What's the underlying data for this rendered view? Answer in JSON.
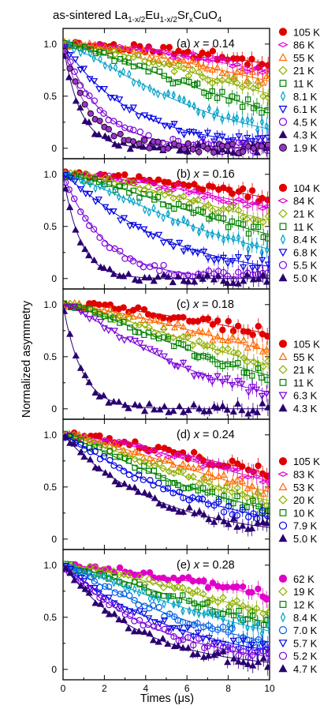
{
  "title": {
    "prefix": "as-sintered La",
    "sub1": "1-x/2",
    "mid1": "Eu",
    "sub2": "1-x/2",
    "mid2": "Sr",
    "sub3": "x",
    "suffix": "CuO",
    "sub4": "4"
  },
  "xlabel": "Times (μs)",
  "ylabel": "Normalized asymmetry",
  "chart_data": [
    {
      "type": "scatter",
      "panel": "(a)",
      "x_value": "0.14",
      "xlim": [
        0,
        10
      ],
      "ylim": [
        -0.1,
        1.15
      ],
      "xticks": [
        0,
        2,
        4,
        6,
        8,
        10
      ],
      "yticks": [
        0,
        0.5,
        1.0
      ],
      "series": [
        {
          "name": "105 K",
          "color": "#e00000",
          "marker": "circle-filled",
          "decay": [
            0.04,
            1.7
          ]
        },
        {
          "name": "86 K",
          "color": "#e000d0",
          "marker": "diamond-side",
          "decay": [
            0.05,
            1.7
          ]
        },
        {
          "name": "55 K",
          "color": "#ff6a00",
          "marker": "triangle-up",
          "decay": [
            0.06,
            1.6
          ]
        },
        {
          "name": "21 K",
          "color": "#8fae00",
          "marker": "diamond",
          "decay": [
            0.075,
            1.5
          ]
        },
        {
          "name": "11 K",
          "color": "#008000",
          "marker": "square",
          "decay": [
            0.1,
            1.4
          ]
        },
        {
          "name": "8.1 K",
          "color": "#00a0c8",
          "marker": "diamond-thin",
          "decay": [
            0.15,
            1.3
          ]
        },
        {
          "name": "6.1 K",
          "color": "#0000e6",
          "marker": "triangle-down",
          "decay": [
            0.3,
            1.0
          ]
        },
        {
          "name": "4.5 K",
          "color": "#7a00d9",
          "marker": "circle-open",
          "decay": [
            0.55,
            1.0
          ]
        },
        {
          "name": "4.3 K",
          "color": "#2a0070",
          "marker": "triangle-up-filled",
          "decay": [
            1.2,
            1.0
          ]
        },
        {
          "name": "1.9 K",
          "color": "#9933cc",
          "marker": "circle-filled-edged",
          "decay": [
            0.8,
            1.0
          ]
        }
      ]
    },
    {
      "type": "scatter",
      "panel": "(b)",
      "x_value": "0.16",
      "xlim": [
        0,
        10
      ],
      "ylim": [
        -0.1,
        1.15
      ],
      "xticks": [
        0,
        2,
        4,
        6,
        8,
        10
      ],
      "yticks": [
        0,
        0.5,
        1.0
      ],
      "series": [
        {
          "name": "104 K",
          "color": "#e00000",
          "marker": "circle-filled",
          "decay": [
            0.045,
            1.7
          ]
        },
        {
          "name": "84 K",
          "color": "#e000d0",
          "marker": "diamond-side",
          "decay": [
            0.055,
            1.6
          ]
        },
        {
          "name": "21 K",
          "color": "#8fae00",
          "marker": "diamond",
          "decay": [
            0.07,
            1.5
          ]
        },
        {
          "name": "11 K",
          "color": "#008000",
          "marker": "square",
          "decay": [
            0.09,
            1.4
          ]
        },
        {
          "name": "8.4 K",
          "color": "#00a0c8",
          "marker": "diamond-thin",
          "decay": [
            0.12,
            1.3
          ]
        },
        {
          "name": "6.8 K",
          "color": "#0000e6",
          "marker": "triangle-down",
          "decay": [
            0.2,
            1.1
          ]
        },
        {
          "name": "5.5 K",
          "color": "#7a00d9",
          "marker": "circle-open",
          "decay": [
            0.5,
            1.0
          ]
        },
        {
          "name": "5.0 K",
          "color": "#2a0070",
          "marker": "triangle-up-filled",
          "decay": [
            1.2,
            1.0
          ]
        }
      ]
    },
    {
      "type": "scatter",
      "panel": "(c)",
      "x_value": "0.18",
      "xlim": [
        0,
        10
      ],
      "ylim": [
        -0.1,
        1.15
      ],
      "xticks": [
        0,
        2,
        4,
        6,
        8,
        10
      ],
      "yticks": [
        0,
        0.5,
        1.0
      ],
      "series": [
        {
          "name": "105 K",
          "color": "#e00000",
          "marker": "circle-filled",
          "decay": [
            0.05,
            1.6
          ]
        },
        {
          "name": "55 K",
          "color": "#ff6a00",
          "marker": "triangle-up",
          "decay": [
            0.07,
            1.5
          ]
        },
        {
          "name": "21 K",
          "color": "#8fae00",
          "marker": "diamond",
          "decay": [
            0.09,
            1.4
          ]
        },
        {
          "name": "11 K",
          "color": "#008000",
          "marker": "square",
          "decay": [
            0.11,
            1.4
          ]
        },
        {
          "name": "6.3 K",
          "color": "#7a00d9",
          "marker": "triangle-down",
          "decay": [
            0.16,
            1.3
          ]
        },
        {
          "name": "4.3 K",
          "color": "#2a0070",
          "marker": "triangle-up-filled",
          "decay": [
            1.1,
            1.0
          ]
        }
      ]
    },
    {
      "type": "scatter",
      "panel": "(d)",
      "x_value": "0.24",
      "xlim": [
        0,
        10
      ],
      "ylim": [
        -0.1,
        1.15
      ],
      "xticks": [
        0,
        2,
        4,
        6,
        8,
        10
      ],
      "yticks": [
        0,
        0.5,
        1.0
      ],
      "series": [
        {
          "name": "105 K",
          "color": "#e00000",
          "marker": "circle-filled",
          "decay": [
            0.06,
            1.5
          ]
        },
        {
          "name": "83 K",
          "color": "#e000d0",
          "marker": "diamond-side",
          "decay": [
            0.07,
            1.5
          ]
        },
        {
          "name": "53 K",
          "color": "#ff6a00",
          "marker": "triangle-up",
          "decay": [
            0.085,
            1.4
          ]
        },
        {
          "name": "20 K",
          "color": "#8fae00",
          "marker": "diamond",
          "decay": [
            0.1,
            1.3
          ]
        },
        {
          "name": "10 K",
          "color": "#008000",
          "marker": "square",
          "decay": [
            0.12,
            1.2
          ]
        },
        {
          "name": "7.9 K",
          "color": "#0000e6",
          "marker": "circle-open",
          "decay": [
            0.15,
            1.1
          ]
        },
        {
          "name": "5.0 K",
          "color": "#2a0070",
          "marker": "triangle-up-filled",
          "decay": [
            0.22,
            1.0
          ]
        }
      ]
    },
    {
      "type": "scatter",
      "panel": "(e)",
      "x_value": "0.28",
      "xlim": [
        0,
        10
      ],
      "ylim": [
        -0.1,
        1.15
      ],
      "xticks": [
        0,
        2,
        4,
        6,
        8,
        10
      ],
      "yticks": [
        0,
        0.5,
        1.0
      ],
      "series": [
        {
          "name": "62 K",
          "color": "#e000c8",
          "marker": "circle-filled",
          "decay": [
            0.05,
            1.5
          ]
        },
        {
          "name": "19 K",
          "color": "#8fae00",
          "marker": "diamond",
          "decay": [
            0.07,
            1.4
          ]
        },
        {
          "name": "12 K",
          "color": "#008000",
          "marker": "square",
          "decay": [
            0.085,
            1.3
          ]
        },
        {
          "name": "8.4 K",
          "color": "#00a0c8",
          "marker": "diamond-thin",
          "decay": [
            0.1,
            1.2
          ]
        },
        {
          "name": "7.0 K",
          "color": "#0060e6",
          "marker": "circle-open",
          "decay": [
            0.13,
            1.1
          ]
        },
        {
          "name": "5.7 K",
          "color": "#0000e6",
          "marker": "triangle-down",
          "decay": [
            0.17,
            1.0
          ]
        },
        {
          "name": "5.2 K",
          "color": "#7a00d9",
          "marker": "circle-open",
          "decay": [
            0.21,
            1.0
          ]
        },
        {
          "name": "4.7 K",
          "color": "#2a0070",
          "marker": "triangle-up-filled",
          "decay": [
            0.27,
            1.0
          ]
        }
      ]
    }
  ]
}
